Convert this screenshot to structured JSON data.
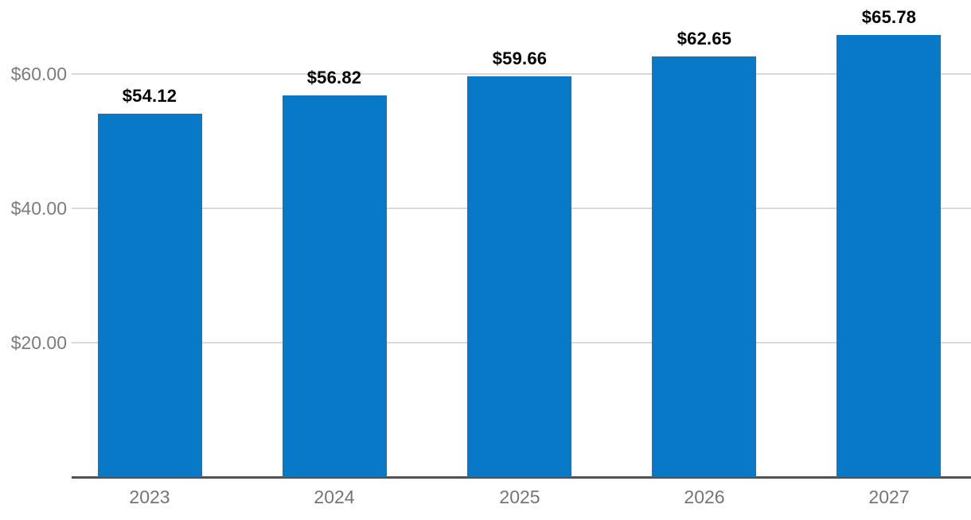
{
  "chart_data": {
    "type": "bar",
    "categories": [
      "2023",
      "2024",
      "2025",
      "2026",
      "2027"
    ],
    "values": [
      54.12,
      56.82,
      59.66,
      62.65,
      65.78
    ],
    "data_labels": [
      "$54.12",
      "$56.82",
      "$59.66",
      "$62.65",
      "$65.78"
    ],
    "yticks": [
      {
        "value": 20,
        "label": "$20.00"
      },
      {
        "value": 40,
        "label": "$40.00"
      },
      {
        "value": 60,
        "label": "$60.00"
      }
    ],
    "ylim": [
      0,
      71
    ],
    "grid": true,
    "legend": false,
    "colors": {
      "bar": "#0779c6",
      "gridline": "#d9d9d9",
      "axis_line": "#515151",
      "y_tick_label": "#7c7c7c",
      "x_tick_label": "#757575",
      "data_label": "#000000",
      "background": "#ffffff"
    }
  }
}
